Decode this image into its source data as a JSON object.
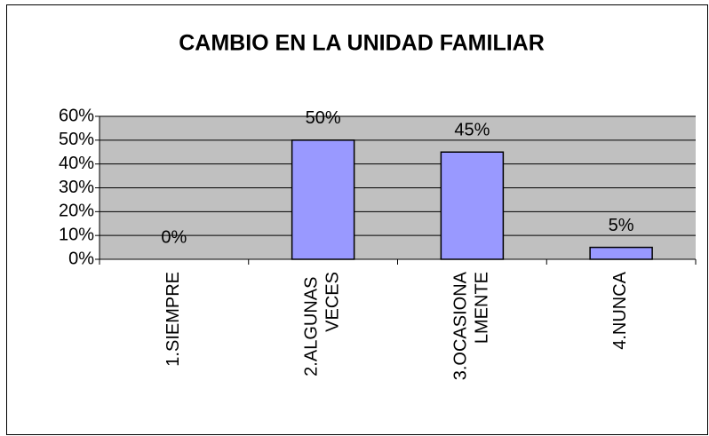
{
  "chart_data": {
    "type": "bar",
    "title": "CAMBIO EN LA UNIDAD FAMILIAR",
    "categories": [
      "1.SIEMPRE",
      "2.ALGUNAS VECES",
      "3.OCASIONALMENTE",
      "4.NUNCA"
    ],
    "values": [
      0,
      50,
      45,
      5
    ],
    "value_labels": [
      "0%",
      "50%",
      "45%",
      "5%"
    ],
    "color": "#9999ff",
    "ylim": [
      0,
      60
    ],
    "yticks": [
      {
        "value": 0,
        "label": "0%"
      },
      {
        "value": 10,
        "label": "10%"
      },
      {
        "value": 20,
        "label": "20%"
      },
      {
        "value": 30,
        "label": "30%"
      },
      {
        "value": 40,
        "label": "40%"
      },
      {
        "value": 50,
        "label": "50%"
      },
      {
        "value": 60,
        "label": "60%"
      }
    ],
    "grid": true
  }
}
